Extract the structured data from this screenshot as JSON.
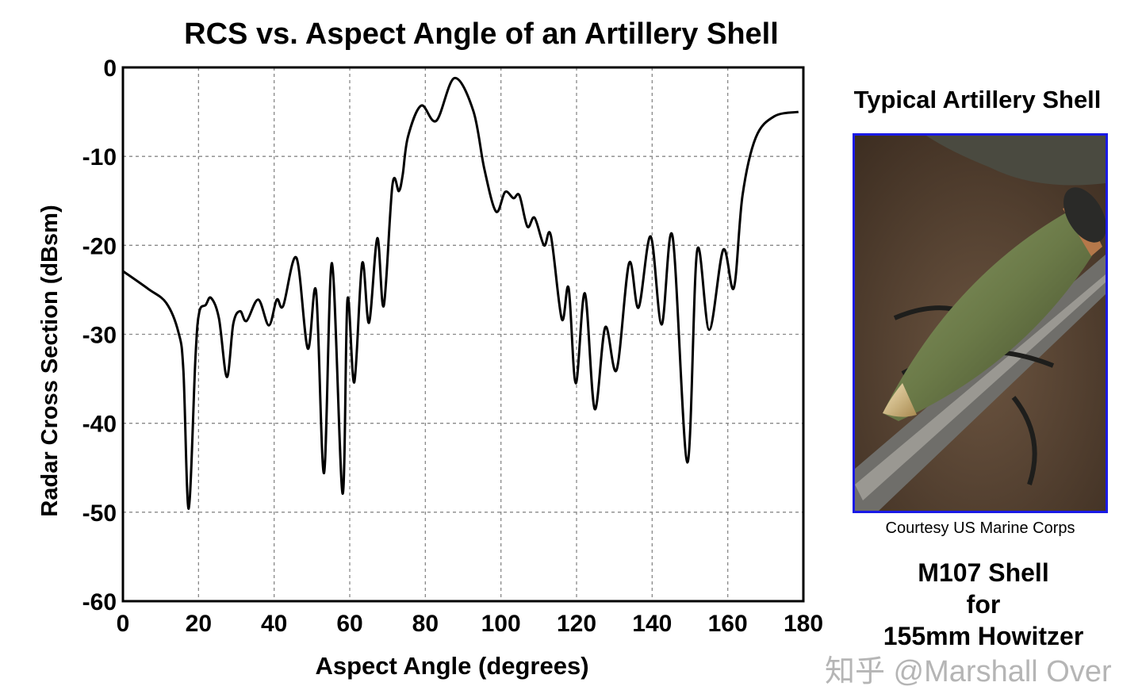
{
  "chart_data": {
    "type": "line",
    "title": "RCS vs. Aspect Angle of an Artillery Shell",
    "xlabel": "Aspect Angle (degrees)",
    "ylabel": "Radar Cross Section (dBsm)",
    "xlim": [
      0,
      180
    ],
    "ylim": [
      -60,
      0
    ],
    "xticks": [
      0,
      20,
      40,
      60,
      80,
      100,
      120,
      140,
      160,
      180
    ],
    "yticks": [
      0,
      -10,
      -20,
      -30,
      -40,
      -50,
      -60
    ],
    "grid": true,
    "series": [
      {
        "name": "RCS",
        "color": "#000000",
        "x": [
          0,
          6.7,
          11.5,
          14.7,
          16.0,
          17.4,
          19.2,
          20.2,
          21.9,
          23.3,
          25.4,
          27.5,
          29.2,
          31.0,
          32.7,
          35.8,
          38.6,
          40.7,
          42.4,
          45.9,
          48.9,
          51.1,
          53.2,
          55.3,
          58.1,
          59.4,
          61.2,
          63.3,
          65.1,
          67.3,
          69.0,
          71.3,
          73.0,
          74.0,
          75.4,
          78.9,
          82.9,
          87.7,
          92.7,
          95.6,
          98.7,
          101.1,
          103.3,
          104.9,
          107.0,
          108.9,
          111.4,
          113.2,
          116.1,
          117.9,
          119.8,
          122.2,
          124.8,
          127.6,
          130.6,
          133.9,
          136.4,
          139.6,
          142.5,
          145.4,
          149.3,
          151.9,
          155.1,
          158.8,
          161.6,
          163.9,
          167.4,
          172.3,
          178.7
        ],
        "y": [
          -22.9,
          -24.9,
          -26.5,
          -29.8,
          -34.1,
          -49.6,
          -32.5,
          -27.5,
          -26.7,
          -25.9,
          -28.2,
          -34.8,
          -28.8,
          -27.4,
          -28.5,
          -26.1,
          -29.0,
          -26.1,
          -26.8,
          -21.4,
          -31.6,
          -25.2,
          -45.6,
          -22.0,
          -47.9,
          -26.1,
          -35.4,
          -22.0,
          -28.7,
          -19.2,
          -26.8,
          -13.2,
          -13.9,
          -12.1,
          -7.8,
          -4.3,
          -6.0,
          -1.2,
          -4.9,
          -11.4,
          -16.2,
          -14.0,
          -14.7,
          -14.4,
          -17.9,
          -16.9,
          -20.0,
          -18.9,
          -28.3,
          -24.8,
          -35.5,
          -25.4,
          -38.4,
          -29.2,
          -34.0,
          -22.0,
          -27.0,
          -19.0,
          -28.9,
          -19.0,
          -44.4,
          -20.6,
          -29.5,
          -20.5,
          -24.8,
          -14.4,
          -7.9,
          -5.5,
          -5.0
        ]
      }
    ]
  },
  "side_panel": {
    "heading": "Typical Artillery Shell",
    "caption": "Courtesy US Marine Corps",
    "shell_name": "M107 Shell",
    "shell_for": "for",
    "shell_weapon": "155mm Howitzer",
    "border_color": "#1a1ae6"
  },
  "watermark": "知乎 @Marshall Over"
}
